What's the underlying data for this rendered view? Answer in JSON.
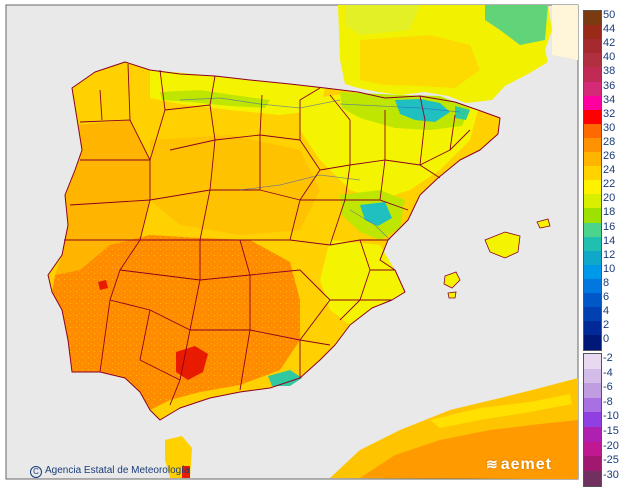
{
  "map": {
    "colors": {
      "sea": "#e9e9e9",
      "land_main": "#ffd100",
      "land_warm": "#ffb000",
      "land_hot": "#ff8a00",
      "land_hottest": "#e81b00",
      "land_cool": "#f4f400",
      "land_cold": "#bfe600",
      "mountain": "#20c0c0",
      "border": "#8b0024",
      "france": "#f2f200"
    }
  },
  "legend": {
    "positive": [
      {
        "label": "50",
        "color": "#7a3b10"
      },
      {
        "label": "44",
        "color": "#9a2a18"
      },
      {
        "label": "42",
        "color": "#a52a30"
      },
      {
        "label": "40",
        "color": "#b03040"
      },
      {
        "label": "38",
        "color": "#c02a55"
      },
      {
        "label": "36",
        "color": "#d42a78"
      },
      {
        "label": "34",
        "color": "#ff00a0"
      },
      {
        "label": "32",
        "color": "#ff0000"
      },
      {
        "label": "30",
        "color": "#ff6a00"
      },
      {
        "label": "28",
        "color": "#ff9200"
      },
      {
        "label": "26",
        "color": "#ffb400"
      },
      {
        "label": "24",
        "color": "#ffd200"
      },
      {
        "label": "22",
        "color": "#fff200"
      },
      {
        "label": "20",
        "color": "#d8f000"
      },
      {
        "label": "18",
        "color": "#9ee000"
      },
      {
        "label": "16",
        "color": "#4cd48c"
      },
      {
        "label": "14",
        "color": "#20c0b0"
      },
      {
        "label": "12",
        "color": "#10a8c8"
      },
      {
        "label": "10",
        "color": "#0098e8"
      },
      {
        "label": "8",
        "color": "#0078e0"
      },
      {
        "label": "6",
        "color": "#0058c8"
      },
      {
        "label": "4",
        "color": "#0040b0"
      },
      {
        "label": "2",
        "color": "#002a98"
      },
      {
        "label": "0",
        "color": "#001878"
      }
    ],
    "negative": [
      {
        "label": "-2",
        "color": "#e8d8f0"
      },
      {
        "label": "-4",
        "color": "#d4bce8"
      },
      {
        "label": "-6",
        "color": "#c09ce0"
      },
      {
        "label": "-8",
        "color": "#a870e0"
      },
      {
        "label": "-10",
        "color": "#9040e0"
      },
      {
        "label": "-15",
        "color": "#b020b0"
      },
      {
        "label": "-20",
        "color": "#c01890"
      },
      {
        "label": "-25",
        "color": "#a01870"
      },
      {
        "label": "-30",
        "color": "#703060"
      }
    ]
  },
  "credit": "Agencia Estatal de Meteorología",
  "logo": "aemet"
}
